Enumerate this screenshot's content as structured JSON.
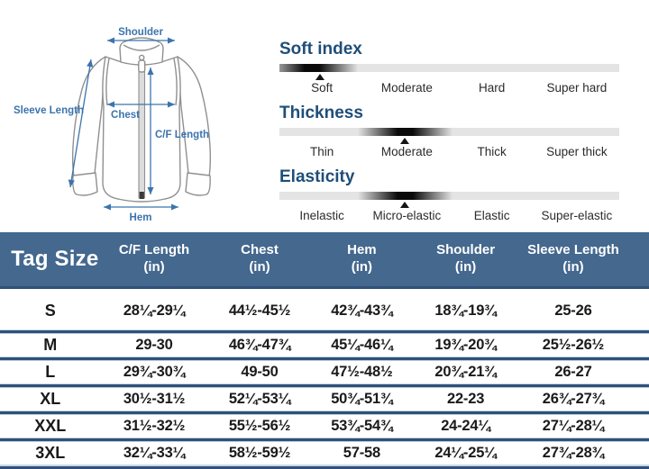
{
  "diagram": {
    "labels": {
      "shoulder": "Shoulder",
      "sleeve_length": "Sleeve Length",
      "chest": "Chest",
      "cf_length": "C/F Length",
      "hem": "Hem"
    },
    "accent_color": "#3B74AE",
    "line_color": "#909090"
  },
  "scales": [
    {
      "title": "Soft index",
      "labels": [
        "Soft",
        "Moderate",
        "Hard",
        "Super hard"
      ],
      "selected": "Soft",
      "marker_pct": 12,
      "blob_left_pct": -4,
      "blob_width_pct": 27
    },
    {
      "title": "Thickness",
      "labels": [
        "Thin",
        "Moderate",
        "Thick",
        "Super thick"
      ],
      "selected": "Moderate",
      "marker_pct": 37,
      "blob_left_pct": 23,
      "blob_width_pct": 28
    },
    {
      "title": "Elasticity",
      "labels": [
        "Inelastic",
        "Micro-elastic",
        "Elastic",
        "Super-elastic"
      ],
      "selected": "Micro-elastic",
      "marker_pct": 37,
      "blob_left_pct": 23,
      "blob_width_pct": 28
    }
  ],
  "size_table": {
    "header": {
      "tag_size": "Tag Size",
      "columns": [
        {
          "label": "C/F Length",
          "unit": "(in)"
        },
        {
          "label": "Chest",
          "unit": "(in)"
        },
        {
          "label": "Hem",
          "unit": "(in)"
        },
        {
          "label": "Shoulder",
          "unit": "(in)"
        },
        {
          "label": "Sleeve Length",
          "unit": "(in)"
        }
      ]
    },
    "rows": [
      {
        "size": "S",
        "values": [
          "28¼-29¼",
          "44½-45½",
          "42¾-43¾",
          "18¾-19¾",
          "25-26"
        ]
      },
      {
        "size": "M",
        "values": [
          "29-30",
          "46¾-47¾",
          "45¼-46¼",
          "19¾-20¾",
          "25½-26½"
        ]
      },
      {
        "size": "L",
        "values": [
          "29¾-30¾",
          "49-50",
          "47½-48½",
          "20¾-21¾",
          "26-27"
        ]
      },
      {
        "size": "XL",
        "values": [
          "30½-31½",
          "52¼-53¼",
          "50¾-51¾",
          "22-23",
          "26¾-27¾"
        ]
      },
      {
        "size": "XXL",
        "values": [
          "31½-32½",
          "55½-56½",
          "53¾-54¾",
          "24-24¼",
          "27¼-28¼"
        ]
      },
      {
        "size": "3XL",
        "values": [
          "32¼-33¼",
          "58½-59½",
          "57-58",
          "24¼-25¼",
          "27¾-28¾"
        ]
      }
    ]
  },
  "colors": {
    "table_header_bg": "#44688E",
    "scale_title_blue": "#1F4E79",
    "separator_navy": "#2F517A",
    "separator_light": "#B9C9DD",
    "bar_gray": "#E4E4E4",
    "diagram_blue": "#3B74AE",
    "text_dark": "#1A1A1A"
  }
}
